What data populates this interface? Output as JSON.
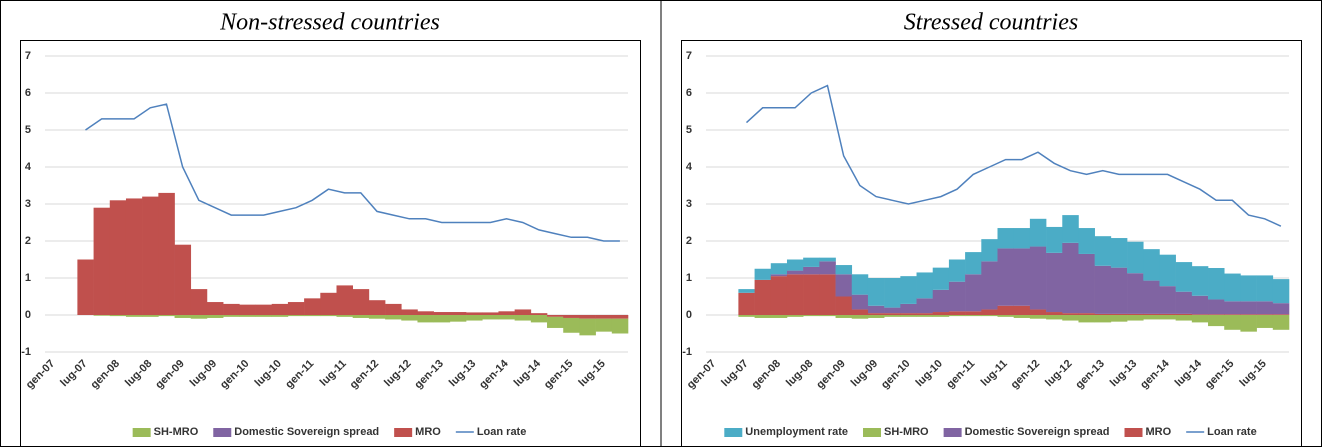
{
  "chart_data": [
    {
      "type": "bar",
      "title": "Non-stressed countries",
      "categories": [
        "gen-07",
        null,
        "lug-07",
        null,
        "gen-08",
        null,
        "lug-08",
        null,
        "gen-09",
        null,
        "lug-09",
        null,
        "gen-10",
        null,
        "lug-10",
        null,
        "gen-11",
        null,
        "lug-11",
        null,
        "gen-12",
        null,
        "lug-12",
        null,
        "gen-13",
        null,
        "lug-13",
        null,
        "gen-14",
        null,
        "lug-14",
        null,
        "gen-15",
        null,
        "lug-15",
        null
      ],
      "ylim": [
        -1,
        7
      ],
      "yticks": [
        -1,
        0,
        1,
        2,
        3,
        4,
        5,
        6,
        7
      ],
      "grid": true,
      "series": [
        {
          "name": "SH-MRO",
          "color": "#9bbb59",
          "values": [
            null,
            null,
            0,
            -0.02,
            -0.03,
            -0.05,
            -0.05,
            -0.03,
            -0.08,
            -0.1,
            -0.08,
            -0.05,
            -0.05,
            -0.05,
            -0.05,
            -0.03,
            -0.03,
            -0.03,
            -0.05,
            -0.08,
            -0.1,
            -0.12,
            -0.15,
            -0.2,
            -0.2,
            -0.18,
            -0.15,
            -0.12,
            -0.12,
            -0.15,
            -0.2,
            -0.3,
            -0.4,
            -0.45,
            -0.35,
            -0.4
          ]
        },
        {
          "name": "Domestic Sovereign spread",
          "color": "#8064a2",
          "values": [
            null,
            null,
            0,
            0,
            0,
            0,
            0,
            0,
            0,
            0,
            0,
            0,
            0,
            0,
            0,
            0,
            0,
            0,
            0,
            0,
            0,
            0,
            0,
            0,
            0,
            0,
            0,
            0,
            0,
            0,
            0,
            0,
            0,
            0,
            0,
            0
          ]
        },
        {
          "name": "MRO",
          "color": "#c0504d",
          "values": [
            null,
            null,
            1.5,
            2.9,
            3.1,
            3.15,
            3.2,
            3.3,
            1.9,
            0.7,
            0.35,
            0.3,
            0.28,
            0.28,
            0.3,
            0.35,
            0.45,
            0.6,
            0.8,
            0.7,
            0.4,
            0.3,
            0.15,
            0.1,
            0.08,
            0.08,
            0.07,
            0.07,
            0.1,
            0.15,
            0.05,
            -0.05,
            -0.08,
            -0.1,
            -0.1,
            -0.1
          ]
        },
        {
          "name": "Loan rate",
          "color": "#4f81bd",
          "type": "line",
          "values": [
            null,
            null,
            5.0,
            5.3,
            5.3,
            5.3,
            5.6,
            5.7,
            4.0,
            3.1,
            2.9,
            2.7,
            2.7,
            2.7,
            2.8,
            2.9,
            3.1,
            3.4,
            3.3,
            3.3,
            2.8,
            2.7,
            2.6,
            2.6,
            2.5,
            2.5,
            2.5,
            2.5,
            2.6,
            2.5,
            2.3,
            2.2,
            2.1,
            2.1,
            2.0,
            2.0
          ]
        }
      ]
    },
    {
      "type": "bar",
      "title": "Stressed countries",
      "categories": [
        "gen-07",
        null,
        "lug-07",
        null,
        "gen-08",
        null,
        "lug-08",
        null,
        "gen-09",
        null,
        "lug-09",
        null,
        "gen-10",
        null,
        "lug-10",
        null,
        "gen-11",
        null,
        "lug-11",
        null,
        "gen-12",
        null,
        "lug-12",
        null,
        "gen-13",
        null,
        "lug-13",
        null,
        "gen-14",
        null,
        "lug-14",
        null,
        "gen-15",
        null,
        "lug-15",
        null
      ],
      "ylim": [
        -1,
        7
      ],
      "yticks": [
        -1,
        0,
        1,
        2,
        3,
        4,
        5,
        6,
        7
      ],
      "grid": true,
      "series": [
        {
          "name": "Unemployment rate",
          "color": "#4bacc6",
          "values": [
            null,
            null,
            0.1,
            0.3,
            0.3,
            0.3,
            0.25,
            0.1,
            0.25,
            0.55,
            0.75,
            0.8,
            0.75,
            0.7,
            0.6,
            0.6,
            0.6,
            0.6,
            0.55,
            0.55,
            0.75,
            0.7,
            0.75,
            0.7,
            0.8,
            0.8,
            0.85,
            0.85,
            0.85,
            0.8,
            0.8,
            0.85,
            0.75,
            0.7,
            0.7,
            0.65
          ]
        },
        {
          "name": "SH-MRO",
          "color": "#9bbb59",
          "values": [
            null,
            null,
            -0.05,
            -0.08,
            -0.08,
            -0.05,
            -0.03,
            -0.03,
            -0.08,
            -0.1,
            -0.08,
            -0.05,
            -0.05,
            -0.05,
            -0.05,
            -0.03,
            -0.03,
            -0.03,
            -0.05,
            -0.08,
            -0.1,
            -0.12,
            -0.15,
            -0.2,
            -0.2,
            -0.18,
            -0.15,
            -0.12,
            -0.12,
            -0.15,
            -0.2,
            -0.3,
            -0.4,
            -0.45,
            -0.35,
            -0.4
          ]
        },
        {
          "name": "Domestic Sovereign spread",
          "color": "#8064a2",
          "values": [
            null,
            null,
            0,
            0,
            0.05,
            0.1,
            0.2,
            0.35,
            0.6,
            0.4,
            0.2,
            0.15,
            0.25,
            0.4,
            0.6,
            0.8,
            1.0,
            1.3,
            1.55,
            1.55,
            1.7,
            1.6,
            1.9,
            1.6,
            1.3,
            1.25,
            1.1,
            0.9,
            0.75,
            0.6,
            0.5,
            0.4,
            0.35,
            0.35,
            0.35,
            0.3
          ]
        },
        {
          "name": "MRO",
          "color": "#c0504d",
          "values": [
            null,
            null,
            0.6,
            0.95,
            1.05,
            1.1,
            1.1,
            1.1,
            0.5,
            0.15,
            0.05,
            0.05,
            0.05,
            0.05,
            0.08,
            0.1,
            0.1,
            0.15,
            0.25,
            0.25,
            0.15,
            0.08,
            0.05,
            0.05,
            0.03,
            0.03,
            0.03,
            0.03,
            0.03,
            0.03,
            0.02,
            0.02,
            0.02,
            0.02,
            0.02,
            0.02
          ]
        },
        {
          "name": "Loan rate",
          "color": "#4f81bd",
          "type": "line",
          "values": [
            null,
            null,
            5.2,
            5.6,
            5.6,
            5.6,
            6.0,
            6.2,
            4.3,
            3.5,
            3.2,
            3.1,
            3.0,
            3.1,
            3.2,
            3.4,
            3.8,
            4.0,
            4.2,
            4.2,
            4.4,
            4.1,
            3.9,
            3.8,
            3.9,
            3.8,
            3.8,
            3.8,
            3.8,
            3.6,
            3.4,
            3.1,
            3.1,
            2.7,
            2.6,
            2.4
          ]
        }
      ]
    }
  ]
}
